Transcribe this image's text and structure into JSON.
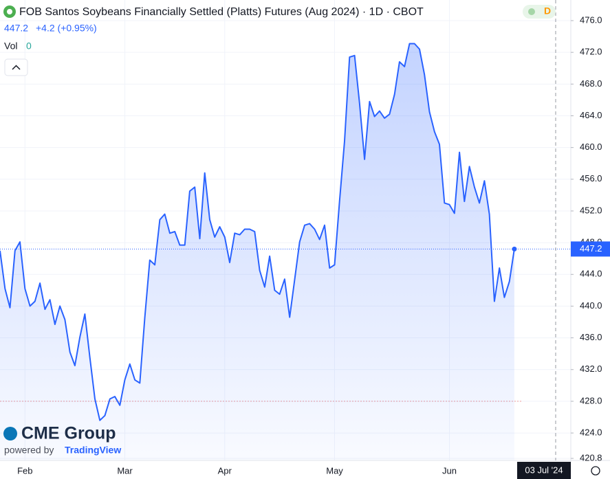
{
  "chart_data": {
    "type": "area",
    "title": "FOB Santos Soybeans Financially Settled (Platts) Futures (Aug 2024) · 1D · CBOT",
    "last_price": 447.2,
    "change": "+4.2 (+0.95%)",
    "volume_label": "Vol",
    "volume": 0,
    "badge": "D",
    "crosshair_date": "03 Jul '24",
    "watermark": "CME Group",
    "powered_by": "powered by",
    "platform": "TradingView",
    "reference_line": 428.0,
    "grid": true,
    "xlim": [
      0,
      114.3
    ],
    "xticks": [
      {
        "value": 5,
        "label": "Feb"
      },
      {
        "value": 25,
        "label": "Mar"
      },
      {
        "value": 45,
        "label": "Apr"
      },
      {
        "value": 67,
        "label": "May"
      },
      {
        "value": 90,
        "label": "Jun"
      }
    ],
    "ylim": [
      420.54,
      478.6
    ],
    "yticks": [
      {
        "value": 420.8,
        "label": "420.8"
      },
      {
        "value": 424,
        "label": "424.0"
      },
      {
        "value": 428,
        "label": "428.0"
      },
      {
        "value": 432,
        "label": "432.0"
      },
      {
        "value": 436,
        "label": "436.0"
      },
      {
        "value": 440,
        "label": "440.0"
      },
      {
        "value": 444,
        "label": "444.0"
      },
      {
        "value": 448,
        "label": "448.0"
      },
      {
        "value": 452,
        "label": "452.0"
      },
      {
        "value": 456,
        "label": "456.0"
      },
      {
        "value": 460,
        "label": "460.0"
      },
      {
        "value": 464,
        "label": "464.0"
      },
      {
        "value": 468,
        "label": "468.0"
      },
      {
        "value": 472,
        "label": "472.0"
      },
      {
        "value": 476,
        "label": "476.0"
      }
    ],
    "series": [
      {
        "name": "FOB Santos Soybeans",
        "color": "#2962ff",
        "values": [
          447.0,
          442.2,
          439.8,
          447.0,
          448.1,
          442.2,
          440.0,
          440.6,
          442.9,
          439.6,
          440.8,
          437.7,
          440.0,
          438.3,
          434.2,
          432.5,
          436.1,
          439.0,
          433.5,
          428.3,
          425.6,
          426.2,
          428.3,
          428.6,
          427.5,
          430.7,
          432.7,
          430.7,
          430.3,
          438.6,
          445.8,
          445.2,
          450.9,
          451.6,
          449.2,
          449.4,
          447.7,
          447.7,
          454.5,
          455.0,
          448.5,
          456.8,
          450.9,
          448.7,
          450.0,
          448.7,
          445.5,
          449.2,
          449.0,
          449.7,
          449.7,
          449.4,
          444.5,
          442.4,
          446.3,
          442.0,
          441.5,
          443.4,
          438.6,
          443.3,
          448.1,
          450.2,
          450.4,
          449.7,
          448.4,
          450.2,
          444.8,
          445.2,
          453.3,
          460.8,
          471.4,
          471.6,
          465.6,
          458.5,
          465.8,
          463.9,
          464.6,
          463.7,
          464.2,
          466.7,
          470.8,
          470.2,
          473.1,
          473.1,
          472.4,
          469.2,
          464.5,
          462.0,
          460.4,
          453.0,
          452.8,
          451.7,
          459.4,
          453.2,
          457.6,
          455.0,
          453.0,
          455.8,
          451.6,
          440.6,
          444.8,
          441.1,
          443.1,
          447.2
        ]
      }
    ]
  }
}
